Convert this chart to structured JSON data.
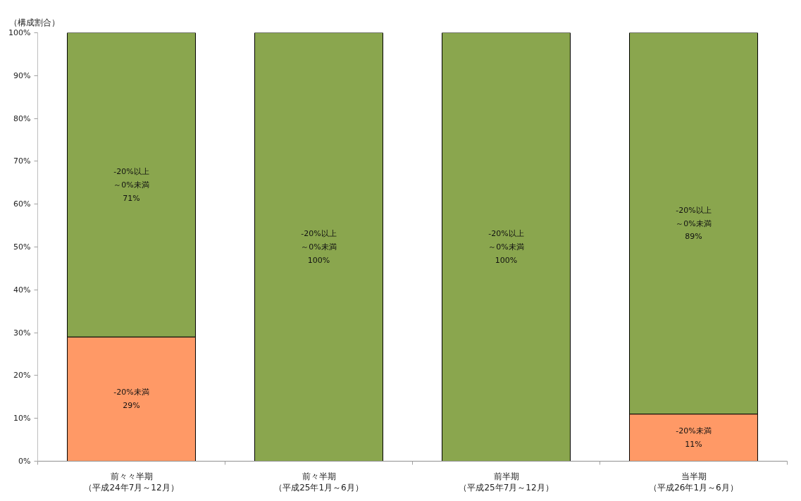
{
  "chart_data": {
    "type": "bar",
    "stacked": true,
    "ylabel": "（構成割合）",
    "categories": [
      "前々々半期（平成24年7月～12月）",
      "前々半期（平成25年1月～6月）",
      "前半期（平成25年7月～12月）",
      "当半期（平成26年1月～6月）"
    ],
    "series": [
      {
        "name": "-20%未満",
        "color": "#ff9966",
        "values": [
          29,
          0,
          0,
          11
        ],
        "value_labels": [
          "29%",
          null,
          null,
          "11%"
        ]
      },
      {
        "name": "-20%以上～0%未満",
        "color": "#8aa64e",
        "values": [
          71,
          100,
          100,
          89
        ],
        "value_labels": [
          "71%",
          "100%",
          "100%",
          "89%"
        ]
      }
    ],
    "ylim": [
      0,
      100
    ],
    "yticks": [
      {
        "value": 0,
        "label": "0%"
      },
      {
        "value": 10,
        "label": "10%"
      },
      {
        "value": 20,
        "label": "20%"
      },
      {
        "value": 30,
        "label": "30%"
      },
      {
        "value": 40,
        "label": "40%"
      },
      {
        "value": 50,
        "label": "50%"
      },
      {
        "value": 60,
        "label": "60%"
      },
      {
        "value": 70,
        "label": "70%"
      },
      {
        "value": 80,
        "label": "80%"
      },
      {
        "value": 90,
        "label": "90%"
      },
      {
        "value": 100,
        "label": "100%"
      }
    ],
    "grid": false,
    "legend": false
  }
}
